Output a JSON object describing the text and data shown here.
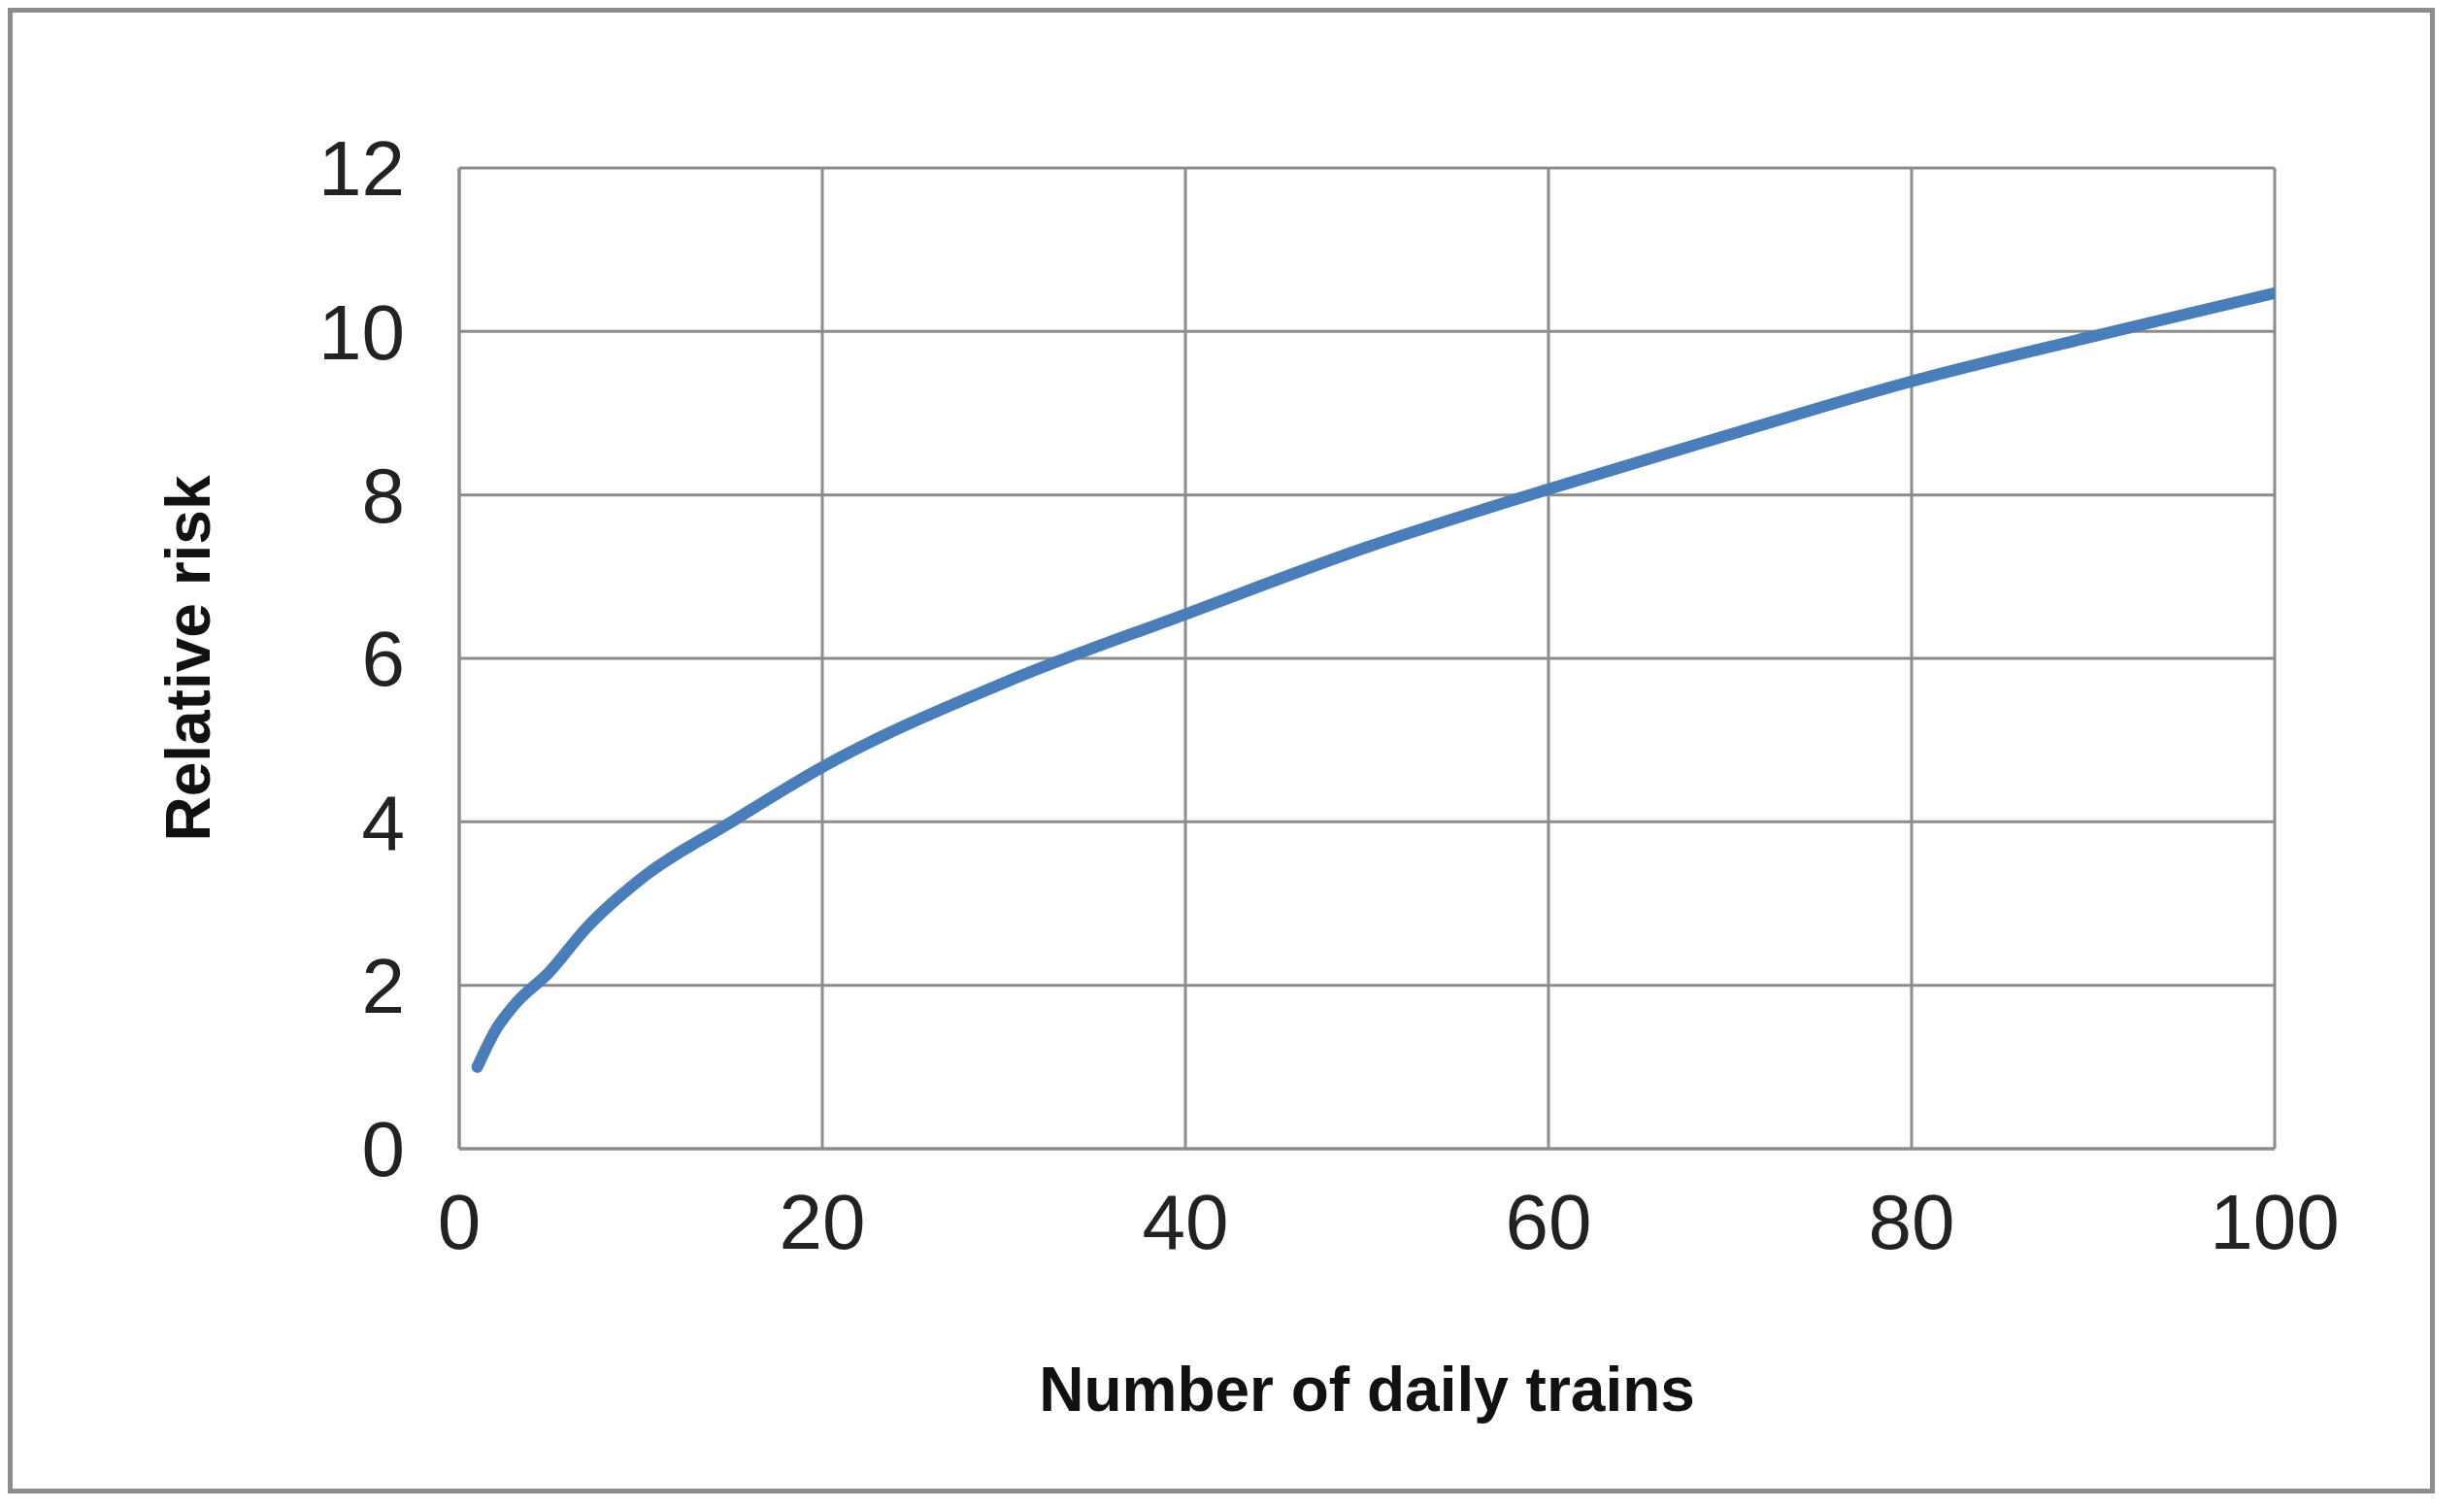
{
  "chart_data": {
    "type": "line",
    "xlabel": "Number of daily trains",
    "ylabel": "Relative risk",
    "x": [
      1,
      2,
      3,
      5,
      7,
      10,
      15,
      20,
      30,
      40,
      50,
      60,
      70,
      80,
      90,
      100
    ],
    "series": [
      {
        "color": "#4a7ebb",
        "values": [
          1.0,
          1.45,
          1.75,
          2.17,
          2.7,
          3.3,
          4.0,
          4.67,
          5.7,
          6.54,
          7.36,
          8.07,
          8.74,
          9.39,
          9.94,
          10.47
        ]
      }
    ],
    "xlim": [
      0,
      100
    ],
    "xticks": [
      0,
      20,
      40,
      60,
      80,
      100
    ],
    "ylim": [
      0,
      12
    ],
    "yticks": [
      0,
      2,
      4,
      6,
      8,
      10,
      12
    ],
    "grid": true,
    "legend": false,
    "marker": "none",
    "line_style": "solid"
  }
}
